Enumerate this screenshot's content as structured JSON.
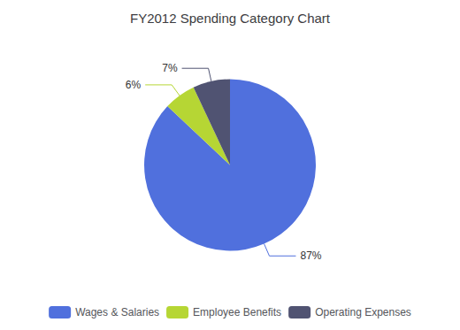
{
  "chart_data": {
    "type": "pie",
    "title": "FY2012 Spending Category Chart",
    "categories": [
      "Wages & Salaries",
      "Employee Benefits",
      "Operating Expenses"
    ],
    "values": [
      87,
      6,
      7
    ],
    "value_labels": [
      "87%",
      "6%",
      "7%"
    ],
    "data_labels": true,
    "legend": "bottom"
  }
}
